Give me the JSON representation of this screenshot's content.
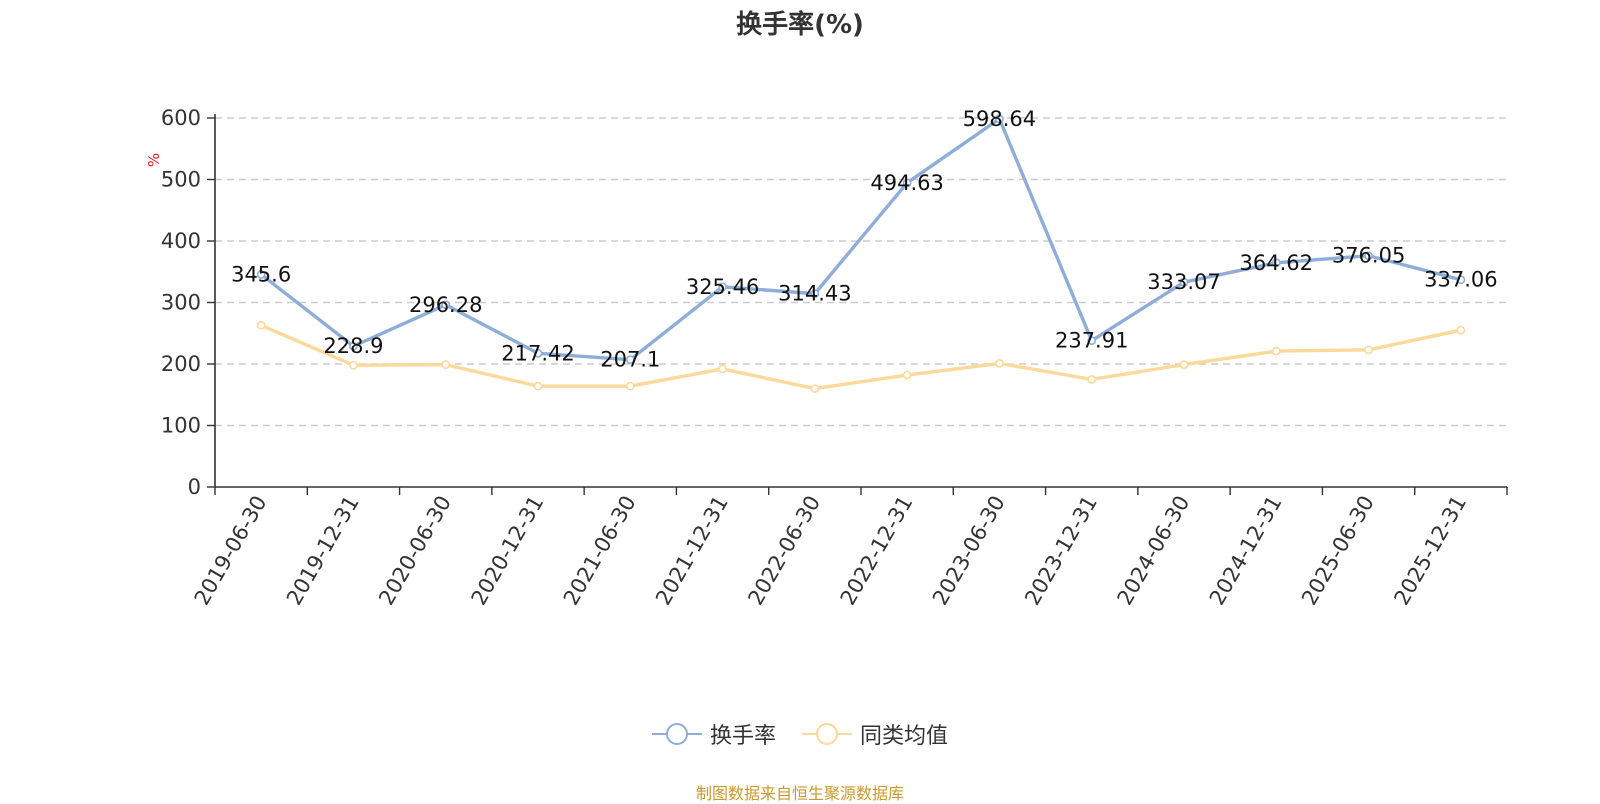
{
  "title": "换手率(%)",
  "source_note": "制图数据来自恒生聚源数据库",
  "colors": {
    "series1": "#8eadd9",
    "series2": "#fad99a",
    "grid": "#cccccc",
    "axis": "#333333",
    "unit": "#e02020",
    "source": "#c99a2e"
  },
  "legend": [
    {
      "name": "换手率",
      "icon": "circle-line-marker-icon"
    },
    {
      "name": "同类均值",
      "icon": "circle-line-marker-icon"
    }
  ],
  "chart_data": {
    "type": "line",
    "title": "换手率(%)",
    "ylabel": "%",
    "ylim": [
      0,
      600
    ],
    "yticks": [
      0,
      100,
      200,
      300,
      400,
      500,
      600
    ],
    "grid": true,
    "legend_position": "bottom",
    "categories": [
      "2019-06-30",
      "2019-12-31",
      "2020-06-30",
      "2020-12-31",
      "2021-06-30",
      "2021-12-31",
      "2022-06-30",
      "2022-12-31",
      "2023-06-30",
      "2023-12-31",
      "2024-06-30",
      "2024-12-31",
      "2025-06-30",
      "2025-12-31"
    ],
    "series": [
      {
        "name": "换手率",
        "values": [
          345.6,
          228.9,
          296.28,
          217.42,
          207.1,
          325.46,
          314.43,
          494.63,
          598.64,
          237.91,
          333.07,
          364.62,
          376.05,
          337.06
        ],
        "data_labels": [
          "345.6",
          "228.9",
          "296.28",
          "217.42",
          "207.1",
          "325.46",
          "314.43",
          "494.63",
          "598.64",
          "237.91",
          "333.07",
          "364.62",
          "376.05",
          "337.06"
        ]
      },
      {
        "name": "同类均值",
        "values": [
          263,
          198,
          199,
          164,
          164,
          192,
          160,
          182,
          201,
          175,
          199,
          221,
          223,
          255
        ]
      }
    ]
  }
}
